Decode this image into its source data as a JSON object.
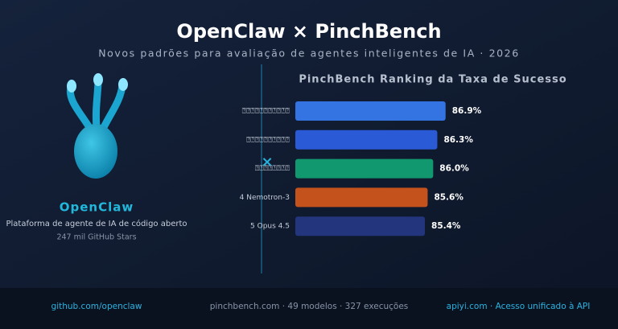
{
  "header": {
    "title": "OpenClaw × PinchBench",
    "subtitle": "Novos padrões para avaliação de agentes inteligentes de IA · 2026"
  },
  "left_panel": {
    "name": "OpenClaw",
    "description": "Plataforma de agente de IA de código aberto",
    "stars": "247 mil GitHub Stars"
  },
  "chart_data": {
    "type": "hbar",
    "title": "PinchBench Ranking da Taxa de Sucesso",
    "categories": [
      "⍰⍰⍰⍰⍰⍰⍰⍰⍰⍰⍰",
      "⍰⍰⍰⍰⍰⍰⍰⍰⍰⍰",
      "⍰⍰⍰⍰⍰⍰⍰⍰",
      "4 Nemotron-3",
      "5 Opus 4.5"
    ],
    "values": [
      86.9,
      86.3,
      86.0,
      85.6,
      85.4
    ],
    "value_labels": [
      "86.9%",
      "86.3%",
      "86.0%",
      "85.6%",
      "85.4%"
    ],
    "colors": [
      "#3474e2",
      "#2a5ad6",
      "#12986f",
      "#c4521c",
      "#23357c"
    ],
    "xlim": [
      76,
      87.5
    ]
  },
  "footer": {
    "left": "github.com/openclaw",
    "center": "pinchbench.com · 49 modelos · 327 execuções",
    "right": "apiyi.com · Acesso unificado à API"
  }
}
